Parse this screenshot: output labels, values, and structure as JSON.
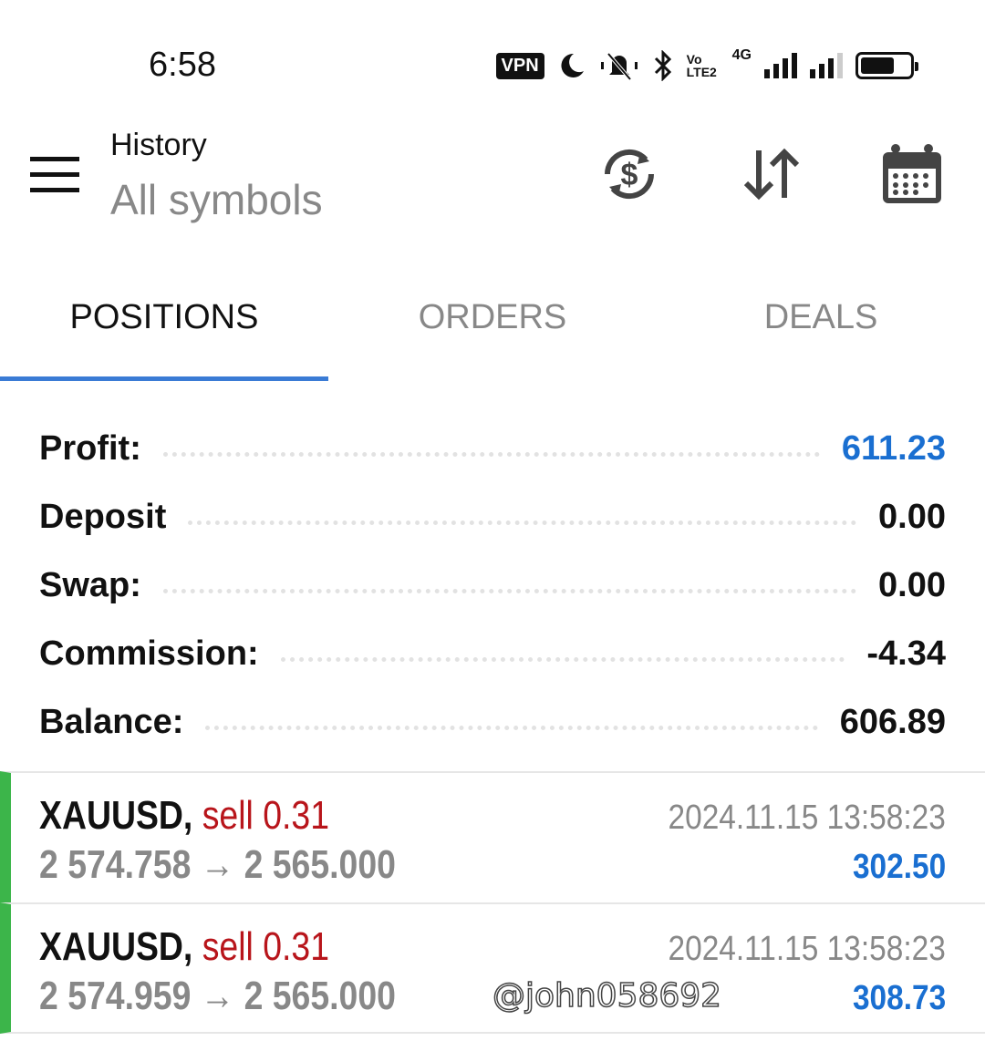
{
  "status_bar": {
    "time": "6:58",
    "vpn": "VPN",
    "icons": [
      "moon-icon",
      "bell-muted-icon",
      "bluetooth-icon",
      "volte-icon",
      "signal-icon",
      "battery-icon"
    ],
    "volte": "Vo LTE2",
    "network": "4G"
  },
  "header": {
    "title": "History",
    "subtitle": "All symbols",
    "icons": [
      "menu-icon",
      "currency-exchange-icon",
      "sort-icon",
      "calendar-icon"
    ]
  },
  "tabs": [
    {
      "label": "POSITIONS",
      "active": true
    },
    {
      "label": "ORDERS"
    },
    {
      "label": "DEALS"
    }
  ],
  "summary": [
    {
      "label": "Profit:",
      "value": "611.23",
      "color": "#1a6fd1"
    },
    {
      "label": "Deposit",
      "value": "0.00"
    },
    {
      "label": "Swap:",
      "value": "0.00"
    },
    {
      "label": "Commission:",
      "value": "-4.34"
    },
    {
      "label": "Balance:",
      "value": "606.89"
    }
  ],
  "positions": [
    {
      "symbol": "XAUUSD,",
      "side": "sell 0.31",
      "prices": "2 574.758 → 2 565.000",
      "time": "2024.11.15 13:58:23",
      "profit": "302.50"
    },
    {
      "symbol": "XAUUSD,",
      "side": "sell 0.31",
      "prices": "2 574.959 → 2 565.000",
      "time": "2024.11.15 13:58:23",
      "profit": "308.73"
    }
  ],
  "watermark": "@john058692",
  "colors": {
    "accent": "#3a7bd5",
    "profit": "#1a6fd1",
    "sell": "#b8151b",
    "buy_bar": "#3cb54a"
  }
}
